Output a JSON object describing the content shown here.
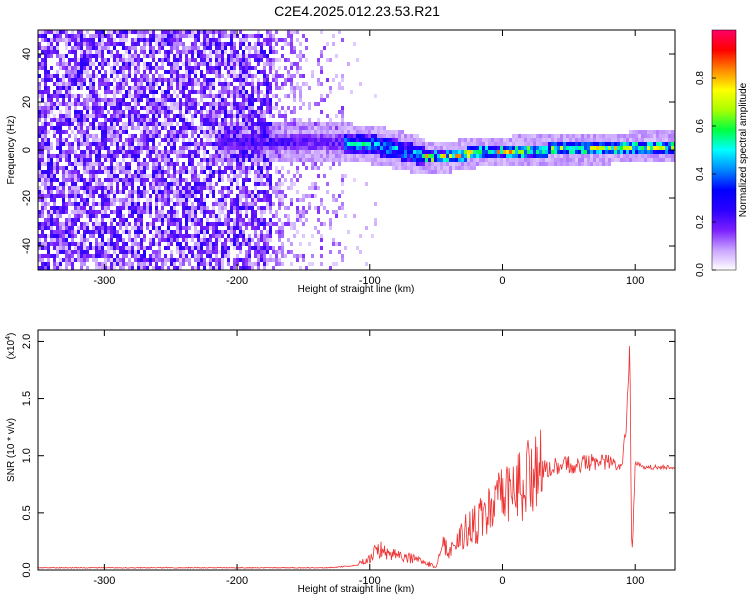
{
  "title": "C2E4.2025.012.23.53.R21",
  "chart_data": [
    {
      "type": "heatmap",
      "xlabel": "Height of straight line (km)",
      "ylabel": "Frequency (Hz)",
      "xlim": [
        -350,
        130
      ],
      "ylim": [
        -50,
        50
      ],
      "xticks": [
        -300,
        -200,
        -100,
        0,
        100
      ],
      "yticks": [
        -40,
        -20,
        0,
        20,
        40
      ],
      "colorbar": {
        "label": "Normalized spectral amplitude",
        "range": [
          0.0,
          1.0
        ],
        "ticks": [
          "0.0",
          "0.2",
          "0.4",
          "0.6",
          "0.8"
        ],
        "colormap": [
          "#ffffff",
          "#c9a3ff",
          "#7a1fff",
          "#2a00ff",
          "#0000ff",
          "#0088ff",
          "#00ffff",
          "#00ff40",
          "#aaff00",
          "#ffff00",
          "#ff8800",
          "#ff0000",
          "#ff0066"
        ]
      },
      "features": {
        "noise_region_x": [
          -350,
          -120
        ],
        "signal_line": [
          {
            "x": -215,
            "y": 4
          },
          {
            "x": -180,
            "y": 4
          },
          {
            "x": -150,
            "y": 4
          },
          {
            "x": -120,
            "y": 4
          },
          {
            "x": -100,
            "y": 3
          },
          {
            "x": -80,
            "y": 1
          },
          {
            "x": -60,
            "y": -2
          },
          {
            "x": -40,
            "y": -2
          },
          {
            "x": -20,
            "y": 0
          },
          {
            "x": 0,
            "y": 0
          },
          {
            "x": 40,
            "y": 1
          },
          {
            "x": 80,
            "y": 1.5
          },
          {
            "x": 100,
            "y": 2
          },
          {
            "x": 130,
            "y": 2
          }
        ]
      }
    },
    {
      "type": "line",
      "xlabel": "Height of straight line (km)",
      "ylabel": "SNR (10 * v/v)",
      "scale_label": "(x10",
      "scale_exp": "4",
      "scale_close": ")",
      "xlim": [
        -350,
        130
      ],
      "ylim": [
        0,
        2.1
      ],
      "xticks": [
        -300,
        -200,
        -100,
        0,
        100
      ],
      "yticks": [
        "0.0",
        "0.5",
        "1.0",
        "1.5",
        "2.0"
      ],
      "color": "#ee3333",
      "series": [
        {
          "x": [
            -350,
            -200,
            -130,
            -110,
            -100,
            -95,
            -85,
            -75,
            -65,
            -55,
            -50,
            -45,
            -40,
            -30,
            -20,
            -10,
            0,
            10,
            20,
            30,
            50,
            70,
            85,
            90,
            93,
            95,
            96,
            97,
            98,
            99,
            100,
            105,
            115,
            130
          ],
          "y": [
            0.02,
            0.02,
            0.02,
            0.04,
            0.1,
            0.18,
            0.16,
            0.12,
            0.09,
            0.05,
            0.03,
            0.22,
            0.18,
            0.32,
            0.4,
            0.52,
            0.62,
            0.72,
            0.82,
            0.88,
            0.92,
            0.95,
            0.93,
            0.96,
            1.2,
            1.7,
            2.1,
            0.4,
            0.1,
            0.6,
            0.95,
            0.9,
            0.9,
            0.9
          ]
        }
      ]
    }
  ]
}
